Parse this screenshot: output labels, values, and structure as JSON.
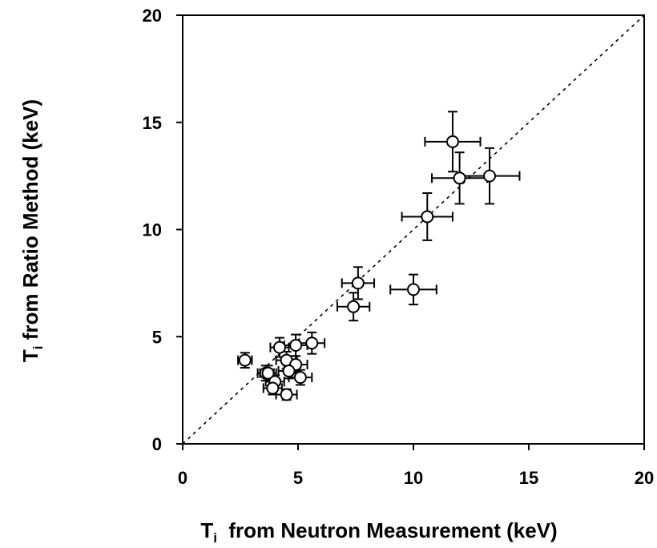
{
  "chart_data": {
    "type": "scatter",
    "title": "",
    "xlabel": {
      "main": "T",
      "sub": "i",
      "rest": "  from Neutron Measurement (keV)"
    },
    "ylabel": {
      "main": "T",
      "sub": "i",
      "rest": " from Ratio Method (keV)"
    },
    "xlim": [
      0,
      20
    ],
    "ylim": [
      0,
      20
    ],
    "x_ticks": [
      "0",
      "5",
      "10",
      "15",
      "20"
    ],
    "y_ticks": [
      "0",
      "5",
      "10",
      "15",
      "20"
    ],
    "grid": false,
    "legend": "none",
    "reference_line": {
      "style": "dotted",
      "from": [
        0,
        0
      ],
      "to": [
        20,
        20
      ]
    },
    "marker": "open-circle",
    "points": [
      {
        "x": 11.7,
        "y": 14.1,
        "xerr": 1.2,
        "yerr": 1.4
      },
      {
        "x": 12.0,
        "y": 12.4,
        "xerr": 1.2,
        "yerr": 1.2
      },
      {
        "x": 13.3,
        "y": 12.5,
        "xerr": 1.3,
        "yerr": 1.3
      },
      {
        "x": 10.6,
        "y": 10.6,
        "xerr": 1.1,
        "yerr": 1.1
      },
      {
        "x": 7.6,
        "y": 7.5,
        "xerr": 0.7,
        "yerr": 0.75
      },
      {
        "x": 7.4,
        "y": 6.4,
        "xerr": 0.7,
        "yerr": 0.65
      },
      {
        "x": 10.0,
        "y": 7.2,
        "xerr": 1.0,
        "yerr": 0.7
      },
      {
        "x": 5.6,
        "y": 4.7,
        "xerr": 0.55,
        "yerr": 0.5
      },
      {
        "x": 4.9,
        "y": 4.6,
        "xerr": 0.5,
        "yerr": 0.5
      },
      {
        "x": 4.2,
        "y": 4.5,
        "xerr": 0.4,
        "yerr": 0.45
      },
      {
        "x": 2.7,
        "y": 3.9,
        "xerr": 0.3,
        "yerr": 0.35
      },
      {
        "x": 4.5,
        "y": 3.9,
        "xerr": 0.45,
        "yerr": 0.4
      },
      {
        "x": 4.9,
        "y": 3.7,
        "xerr": 0.5,
        "yerr": 0.4
      },
      {
        "x": 4.6,
        "y": 3.4,
        "xerr": 0.45,
        "yerr": 0.35
      },
      {
        "x": 3.6,
        "y": 3.3,
        "xerr": 0.35,
        "yerr": 0.35
      },
      {
        "x": 3.7,
        "y": 3.3,
        "xerr": 0.35,
        "yerr": 0.35
      },
      {
        "x": 5.1,
        "y": 3.1,
        "xerr": 0.5,
        "yerr": 0.35
      },
      {
        "x": 4.0,
        "y": 2.9,
        "xerr": 0.4,
        "yerr": 0.3
      },
      {
        "x": 3.9,
        "y": 2.6,
        "xerr": 0.4,
        "yerr": 0.3
      },
      {
        "x": 4.5,
        "y": 2.3,
        "xerr": 0.45,
        "yerr": 0.25
      }
    ]
  }
}
